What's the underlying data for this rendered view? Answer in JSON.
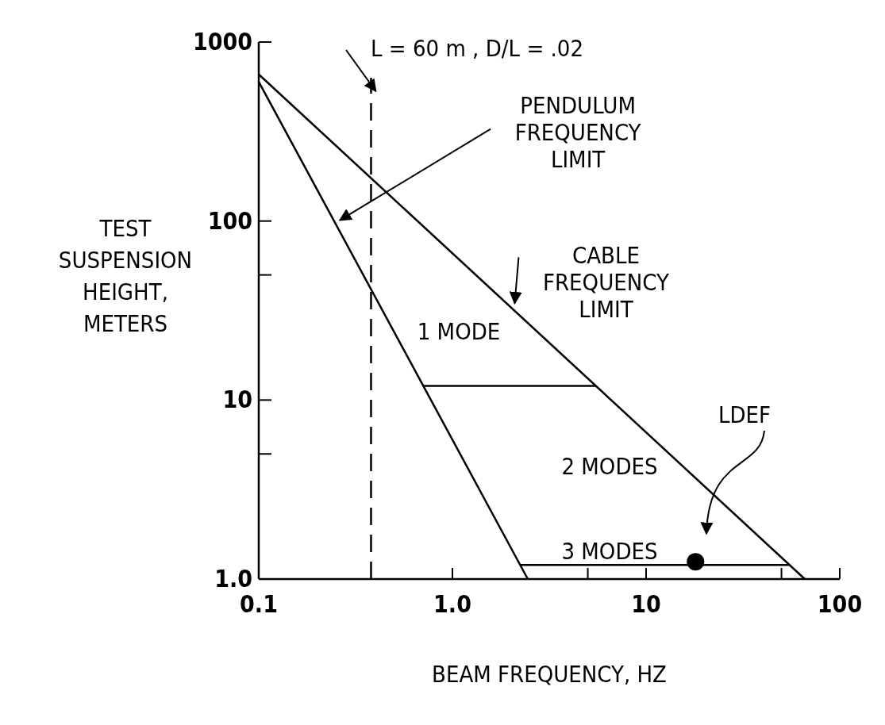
{
  "chart_data": {
    "type": "line",
    "xlabel": "BEAM FREQUENCY, HZ",
    "ylabel": "TEST SUSPENSION HEIGHT, METERS",
    "log": "xy",
    "xlim": [
      0.1,
      100
    ],
    "ylim": [
      1,
      1000
    ],
    "xticks": [
      {
        "value": 0.1,
        "label": "0.1"
      },
      {
        "value": 1,
        "label": "1.0"
      },
      10,
      {
        "value": 50,
        "label": null
      },
      {
        "value": 5,
        "label": null
      },
      100
    ],
    "yticks": [
      {
        "value": 1,
        "label": "1.0"
      },
      {
        "value": 5,
        "label": null
      },
      10,
      {
        "value": 50,
        "label": null
      },
      100,
      1000
    ],
    "series": [
      {
        "color": "#000000",
        "x": [
          0.1,
          66
        ],
        "values": [
          660,
          1
        ]
      },
      {
        "color": "#000000",
        "x": [
          0.1,
          2.45
        ],
        "values": [
          600,
          1
        ]
      },
      {
        "color": "#000000",
        "x": [
          0.71,
          5.5
        ],
        "values": [
          12,
          12
        ]
      },
      {
        "color": "#000000",
        "x": [
          2.24,
          55
        ],
        "values": [
          1.2,
          1.2
        ]
      },
      {
        "type": "scatter",
        "marker": "circle",
        "color": "#000000",
        "x": [
          18
        ],
        "values": [
          1.25
        ]
      }
    ],
    "ref_lines": [
      {
        "axis": "x",
        "value": 0.38,
        "line_style": "dashed",
        "color": "#000000"
      }
    ],
    "annotations": [
      "L = 60 m ,  D/L = .02",
      {
        "text": "PENDULUM FREQUENCY LIMIT",
        "x": 0.25,
        "y": 96
      },
      {
        "text": "CABLE FREQUENCY LIMIT",
        "x": 2.0,
        "y": 33
      },
      "LDEF",
      "1 MODE",
      "2 MODES",
      "3 MODES"
    ],
    "grid": false
  }
}
